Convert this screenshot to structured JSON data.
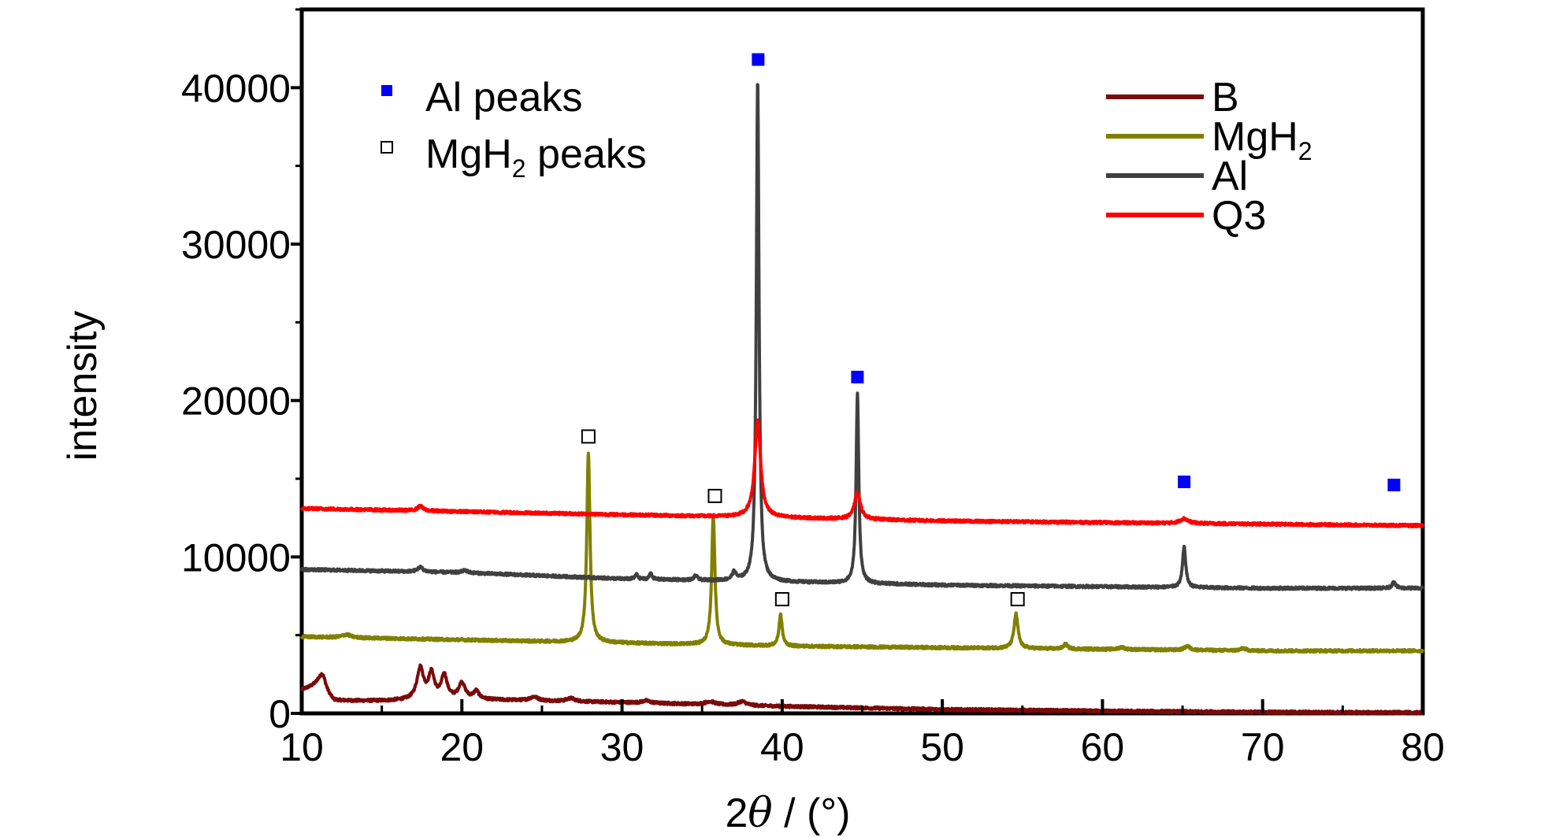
{
  "chart_data": {
    "type": "line",
    "xlabel_prefix": "2",
    "xlabel_symbol": "θ",
    "xlabel_suffix": " / (°)",
    "ylabel": "intensity",
    "xlim": [
      10,
      80
    ],
    "ylim": [
      0,
      45000
    ],
    "x_ticks": [
      "10",
      "20",
      "30",
      "40",
      "50",
      "60",
      "70",
      "80"
    ],
    "y_ticks": [
      "0",
      "10000",
      "20000",
      "30000",
      "40000"
    ],
    "grid": false,
    "legend_placement": "top-right",
    "series": [
      {
        "name": "B",
        "sub": "",
        "color": "#7b0a0a",
        "baseline": [
          [
            10,
            1500
          ],
          [
            11,
            1800
          ],
          [
            12,
            800
          ],
          [
            15,
            800
          ],
          [
            20,
            900
          ],
          [
            25,
            800
          ],
          [
            30,
            700
          ],
          [
            40,
            450
          ],
          [
            50,
            250
          ],
          [
            60,
            150
          ],
          [
            70,
            80
          ],
          [
            80,
            50
          ]
        ],
        "peaks": [
          [
            11.3,
            1000,
            0.25
          ],
          [
            17.4,
            2000,
            0.25
          ],
          [
            18.1,
            1600,
            0.22
          ],
          [
            18.9,
            1500,
            0.22
          ],
          [
            20.0,
            1000,
            0.25
          ],
          [
            20.9,
            500,
            0.2
          ],
          [
            24.5,
            250,
            0.3
          ],
          [
            26.8,
            200,
            0.3
          ],
          [
            31.5,
            150,
            0.3
          ],
          [
            35.5,
            200,
            0.35
          ],
          [
            37.5,
            250,
            0.3
          ]
        ]
      },
      {
        "name": "MgH",
        "sub": "2",
        "color": "#808000",
        "baseline": [
          [
            10,
            4900
          ],
          [
            20,
            4700
          ],
          [
            30,
            4500
          ],
          [
            40,
            4300
          ],
          [
            50,
            4200
          ],
          [
            60,
            4100
          ],
          [
            70,
            4000
          ],
          [
            80,
            4000
          ]
        ],
        "peaks": [
          [
            12.8,
            200,
            0.3
          ],
          [
            27.9,
            12100,
            0.12
          ],
          [
            35.7,
            8300,
            0.12
          ],
          [
            39.9,
            2000,
            0.12
          ],
          [
            54.6,
            2200,
            0.15
          ],
          [
            57.7,
            300,
            0.15
          ],
          [
            61.2,
            150,
            0.2
          ],
          [
            65.3,
            250,
            0.2
          ],
          [
            68.8,
            150,
            0.2
          ]
        ]
      },
      {
        "name": "Al",
        "sub": "",
        "color": "#404040",
        "baseline": [
          [
            10,
            9200
          ],
          [
            20,
            9000
          ],
          [
            30,
            8600
          ],
          [
            40,
            8400
          ],
          [
            50,
            8200
          ],
          [
            60,
            8100
          ],
          [
            70,
            8000
          ],
          [
            80,
            8000
          ]
        ],
        "peaks": [
          [
            17.4,
            300,
            0.2
          ],
          [
            20.2,
            150,
            0.2
          ],
          [
            30.9,
            300,
            0.1
          ],
          [
            31.8,
            400,
            0.1
          ],
          [
            34.6,
            300,
            0.12
          ],
          [
            37.0,
            500,
            0.15
          ],
          [
            38.47,
            32100,
            0.1
          ],
          [
            44.7,
            12100,
            0.1
          ],
          [
            65.1,
            2600,
            0.12
          ],
          [
            78.2,
            450,
            0.12
          ]
        ]
      },
      {
        "name": "Q3",
        "sub": "",
        "color": "#ff0000",
        "baseline": [
          [
            10,
            13100
          ],
          [
            20,
            12900
          ],
          [
            30,
            12700
          ],
          [
            40,
            12500
          ],
          [
            50,
            12300
          ],
          [
            60,
            12200
          ],
          [
            70,
            12100
          ],
          [
            80,
            12000
          ]
        ],
        "peaks": [
          [
            17.4,
            300,
            0.2
          ],
          [
            38.47,
            6200,
            0.22
          ],
          [
            44.7,
            1700,
            0.22
          ],
          [
            65.1,
            300,
            0.3
          ]
        ]
      }
    ],
    "marker_legend": [
      {
        "label": "Al peaks",
        "sub": "",
        "label_end": "",
        "style": "filled",
        "color": "#0000ff"
      },
      {
        "label": "MgH",
        "sub": "2",
        "label_end": " peaks",
        "style": "open",
        "color": "#000000"
      }
    ],
    "markers": [
      {
        "x": 38.5,
        "y": 41800,
        "style": "filled"
      },
      {
        "x": 44.7,
        "y": 21500,
        "style": "filled"
      },
      {
        "x": 65.1,
        "y": 14800,
        "style": "filled"
      },
      {
        "x": 78.2,
        "y": 14600,
        "style": "filled"
      },
      {
        "x": 27.9,
        "y": 17700,
        "style": "open"
      },
      {
        "x": 35.8,
        "y": 13900,
        "style": "open"
      },
      {
        "x": 40.0,
        "y": 7300,
        "style": "open"
      },
      {
        "x": 54.7,
        "y": 7300,
        "style": "open"
      }
    ]
  }
}
